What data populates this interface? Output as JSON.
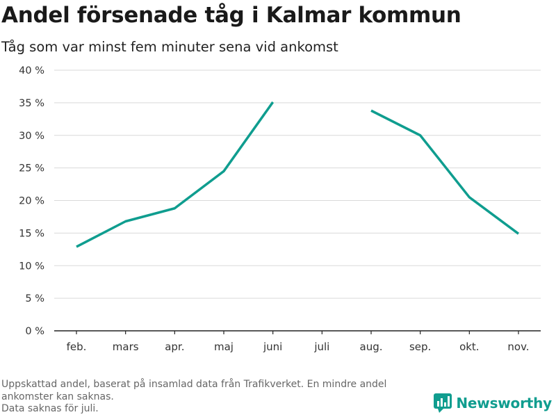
{
  "header": {
    "title": "Andel försenade tåg i Kalmar kommun",
    "subtitle": "Tåg som var minst fem minuter sena vid ankomst"
  },
  "footnote": {
    "line1": "Uppskattad andel, baserat på insamlad data från Trafikverket. En mindre andel",
    "line2": "ankomster kan saknas.",
    "line3": "Data saknas för juli."
  },
  "brand": {
    "name": "Newsworthy",
    "color": "#109d8f",
    "icon": "newsworthy-logo-icon"
  },
  "chart_data": {
    "type": "line",
    "categories": [
      "feb.",
      "mars",
      "apr.",
      "maj",
      "juni",
      "juli",
      "aug.",
      "sep.",
      "okt.",
      "nov."
    ],
    "series": [
      {
        "values": [
          12.9,
          16.8,
          18.8,
          24.5,
          35.1,
          null,
          33.8,
          30.0,
          20.5,
          14.9
        ],
        "color": "#0f9d8f"
      }
    ],
    "ylim": [
      0,
      40
    ],
    "yticks": [
      0,
      5,
      10,
      15,
      20,
      25,
      30,
      35,
      40
    ],
    "ytick_labels": [
      "0 %",
      "5 %",
      "10 %",
      "15 %",
      "20 %",
      "25 %",
      "30 %",
      "35 %",
      "40 %"
    ],
    "grid": true
  }
}
